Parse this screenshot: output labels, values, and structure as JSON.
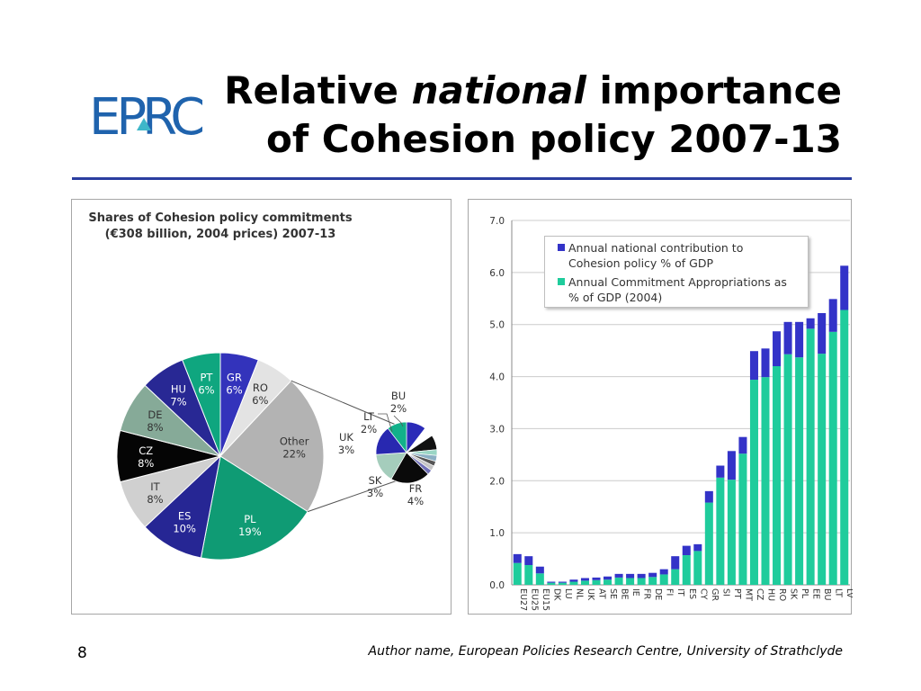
{
  "title": {
    "line1_pre": "Relative ",
    "line1_em": "national",
    "line1_post": " importance",
    "line2": "of Cohesion policy 2007-13"
  },
  "logo": {
    "text": "EPRC",
    "color": "#1f63ad"
  },
  "colors": {
    "accent_rule": "#2b3ea0",
    "green": "#1fc8a0",
    "blue": "#3434c4"
  },
  "footer": {
    "page_number": "8",
    "author": "Author name, European Policies Research Centre, University of Strathclyde"
  },
  "chart_data": [
    {
      "type": "pie",
      "title_line1": "Shares of Cohesion policy commitments",
      "title_line2": "(€308 billion, 2004 prices) 2007-13",
      "slices": [
        {
          "label": "GR",
          "pct": "6%",
          "value": 6,
          "color": "#3333bb"
        },
        {
          "label": "RO",
          "pct": "6%",
          "value": 6,
          "color": "#e3e3e3"
        },
        {
          "label": "Other",
          "pct": "22%",
          "value": 22,
          "color": "#b3b3b3"
        },
        {
          "label": "PL",
          "pct": "19%",
          "value": 19,
          "color": "#0f9b74"
        },
        {
          "label": "ES",
          "pct": "10%",
          "value": 10,
          "color": "#262694"
        },
        {
          "label": "IT",
          "pct": "8%",
          "value": 8,
          "color": "#d0d0d0"
        },
        {
          "label": "CZ",
          "pct": "8%",
          "value": 8,
          "color": "#050505"
        },
        {
          "label": "DE",
          "pct": "8%",
          "value": 8,
          "color": "#86aa98"
        },
        {
          "label": "HU",
          "pct": "7%",
          "value": 7,
          "color": "#282894"
        },
        {
          "label": "PT",
          "pct": "6%",
          "value": 6,
          "color": "#0fa67f"
        }
      ],
      "breakout": [
        {
          "label": "BU",
          "pct": "2%",
          "value": 2,
          "color": "#2b2bb8"
        },
        {
          "label": "",
          "pct": "",
          "value": 1,
          "color": "#ffffff"
        },
        {
          "label": "",
          "pct": "",
          "value": 1.5,
          "color": "#111111"
        },
        {
          "label": "",
          "pct": "",
          "value": 0.6,
          "color": "#9ad6c5"
        },
        {
          "label": "",
          "pct": "",
          "value": 0.6,
          "color": "#8bb0c4"
        },
        {
          "label": "",
          "pct": "",
          "value": 0.5,
          "color": "#555555"
        },
        {
          "label": "",
          "pct": "",
          "value": 0.5,
          "color": "#c5c5c5"
        },
        {
          "label": "",
          "pct": "",
          "value": 0.5,
          "color": "#7070b8"
        },
        {
          "label": "FR",
          "pct": "4%",
          "value": 4,
          "color": "#0a0a0a"
        },
        {
          "label": "SK",
          "pct": "3%",
          "value": 3,
          "color": "#a5cdbc"
        },
        {
          "label": "UK",
          "pct": "3%",
          "value": 3,
          "color": "#2828b0"
        },
        {
          "label": "LT",
          "pct": "2%",
          "value": 2,
          "color": "#12b08a"
        }
      ]
    },
    {
      "type": "bar",
      "stacked": true,
      "categories": [
        "EU27",
        "EU25",
        "EU15",
        "DK",
        "LU",
        "NL",
        "UK",
        "AT",
        "SE",
        "BE",
        "IE",
        "FR",
        "DE",
        "FI",
        "IT",
        "ES",
        "CY",
        "GR",
        "SI",
        "PT",
        "MT",
        "CZ",
        "HU",
        "RO",
        "SK",
        "PL",
        "EE",
        "BU",
        "LT",
        "LV"
      ],
      "series": [
        {
          "name": "Annual national contribution to Cohesion policy % of GDP",
          "color": "#3333c8",
          "values": [
            0.17,
            0.17,
            0.13,
            0.02,
            0.02,
            0.04,
            0.05,
            0.05,
            0.06,
            0.07,
            0.08,
            0.08,
            0.08,
            0.1,
            0.25,
            0.18,
            0.13,
            0.22,
            0.23,
            0.55,
            0.32,
            0.55,
            0.55,
            0.67,
            0.62,
            0.68,
            0.2,
            0.78,
            0.63,
            0.85
          ]
        },
        {
          "name": "Annual Commitment Appropriations as % of GDP (2004)",
          "color": "#1fcc9c",
          "values": [
            0.42,
            0.38,
            0.22,
            0.04,
            0.04,
            0.06,
            0.08,
            0.09,
            0.1,
            0.14,
            0.13,
            0.13,
            0.15,
            0.2,
            0.3,
            0.57,
            0.65,
            1.58,
            2.06,
            2.02,
            2.52,
            3.94,
            3.99,
            4.2,
            4.43,
            4.37,
            4.92,
            4.44,
            4.86,
            5.28
          ]
        }
      ],
      "legend_line1": "Annual national contribution to",
      "legend_line2": "Cohesion policy % of GDP",
      "legend_line3": "Annual Commitment Appropriations as",
      "legend_line4": "% of GDP (2004)",
      "ylim": [
        0,
        7
      ],
      "yticks": [
        "0.0",
        "1.0",
        "2.0",
        "3.0",
        "4.0",
        "5.0",
        "6.0",
        "7.0"
      ],
      "grid": true,
      "legend_position": "top-left"
    }
  ]
}
